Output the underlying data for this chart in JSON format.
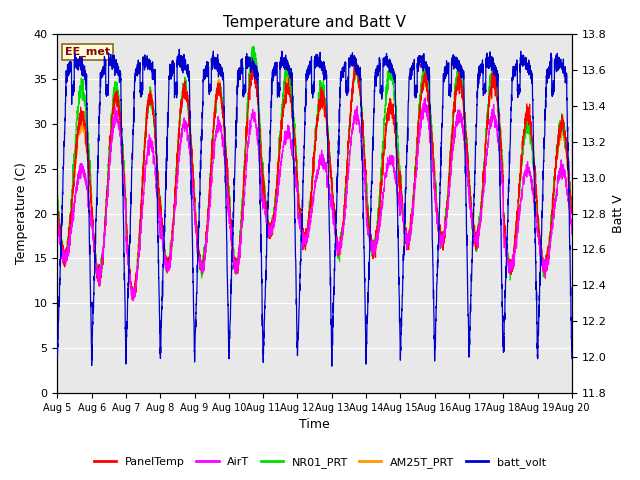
{
  "title": "Temperature and Batt V",
  "xlabel": "Time",
  "ylabel_left": "Temperature (C)",
  "ylabel_right": "Batt V",
  "annotation": "EE_met",
  "ylim_left": [
    0,
    40
  ],
  "ylim_right": [
    11.8,
    13.8
  ],
  "xtick_labels": [
    "Aug 5",
    "Aug 6",
    "Aug 7",
    "Aug 8",
    "Aug 9",
    "Aug 10",
    "Aug 11",
    "Aug 12",
    "Aug 13",
    "Aug 14",
    "Aug 15",
    "Aug 16",
    "Aug 17",
    "Aug 18",
    "Aug 19",
    "Aug 20"
  ],
  "ytick_left": [
    0,
    5,
    10,
    15,
    20,
    25,
    30,
    35,
    40
  ],
  "ytick_right": [
    11.8,
    12.0,
    12.2,
    12.4,
    12.6,
    12.8,
    13.0,
    13.2,
    13.4,
    13.6,
    13.8
  ],
  "colors": {
    "PanelTemp": "#ff0000",
    "AirT": "#ff00ff",
    "NR01_PRT": "#00dd00",
    "AM25T_PRT": "#ff9900",
    "batt_volt": "#0000cc"
  },
  "bg_color": "#e8e8e8",
  "num_days": 15,
  "pts_per_day": 288
}
